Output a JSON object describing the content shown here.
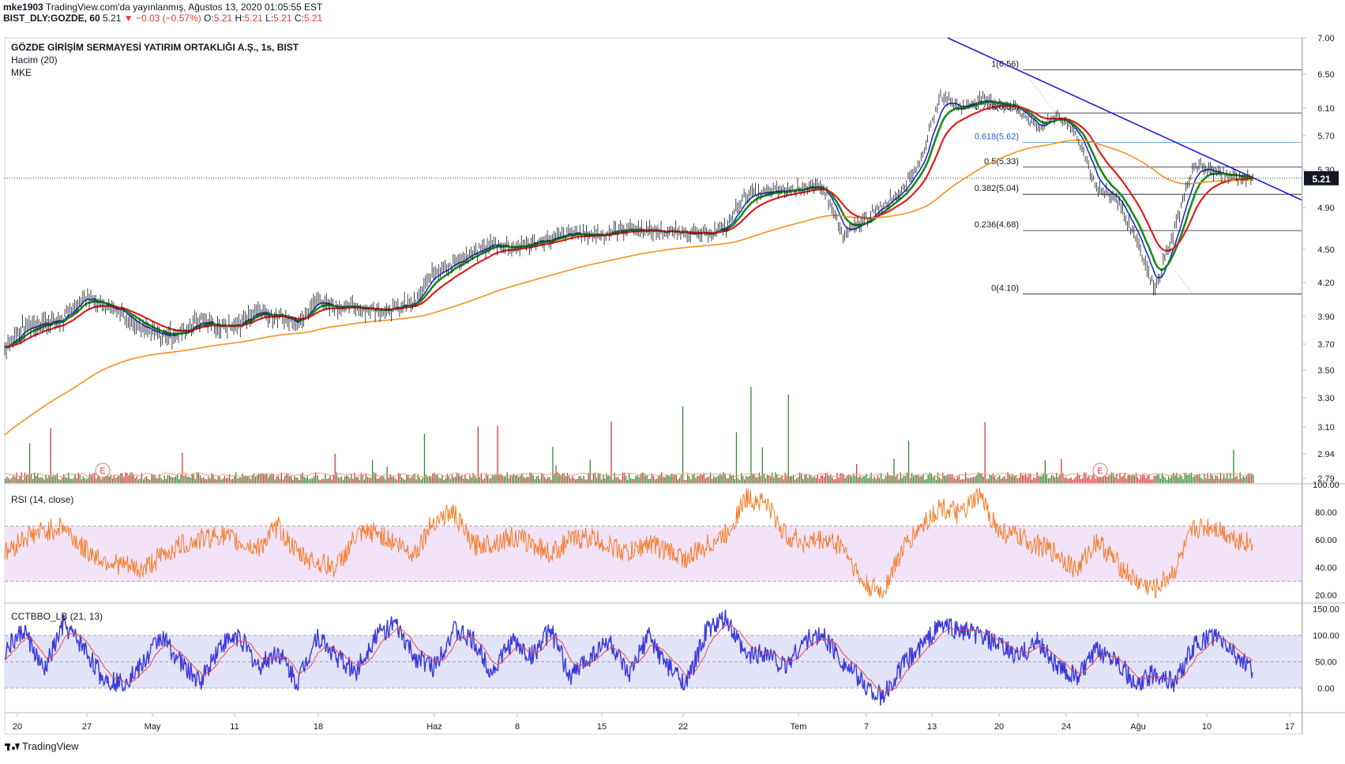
{
  "header": {
    "line1_user": "mke1903",
    "line1_rest": "TradingView.com'da yayınlanmış, Ağustos 13, 2020 01:05:55 EST",
    "line2_symbol": "BIST_DLY:GOZDE, 60",
    "line2_price": "5.21",
    "line2_arrow": "▼",
    "line2_change": "−0.03 (−0.57%)",
    "o_label": "O:",
    "o_val": "5.21",
    "h_label": "H:",
    "h_val": "5.21",
    "l_label": "L:",
    "l_val": "5.21",
    "c_label": "C:",
    "c_val": "5.21"
  },
  "panes": {
    "main_title": "GÖZDE GİRİŞİM SERMAYESİ YATIRIM ORTAKLIĞI A.Ş., 1s, BIST",
    "volume_title": "Hacim (20)",
    "mke_title": "MKE",
    "rsi_title": "RSI (14, close)",
    "cct_title": "CCTBBO_LB (21, 13)"
  },
  "footer": {
    "brand": "TradingView"
  },
  "colors": {
    "ema_fast": "#1e2ac8",
    "ema_mid": "#1a8a1a",
    "ema_slow": "#e01e1e",
    "ema_long": "#f5901e",
    "rsi_line": "#f57c2a",
    "rsi_band": "#f3e3f8",
    "cct_line": "#3a3adb",
    "cct_signal": "#e84a4a",
    "cct_band": "#e3e3f8",
    "trend": "#1e1ed6",
    "vol_up": "#2e8b2e",
    "vol_dn": "#d23b3b"
  },
  "chart_data": [
    {
      "type": "candlestick",
      "title": "GÖZDE GİRİŞİM SERMAYESİ YATIRIM ORTAKLIĞI A.Ş., 1s, BIST",
      "x_ticks": [
        "20",
        "27",
        "May",
        "11",
        "18",
        "Haz",
        "8",
        "15",
        "22",
        "Tem",
        "7",
        "13",
        "20",
        "24",
        "Ağu",
        "10",
        "17"
      ],
      "y_ticks": [
        7.0,
        6.5,
        6.1,
        5.7,
        5.3,
        4.9,
        4.5,
        4.2,
        3.9,
        3.7,
        3.5,
        3.3,
        3.1,
        2.94,
        2.79
      ],
      "y_tick_labels": [
        "7.00",
        "6.50",
        "6.10",
        "5.70",
        "5.30",
        "4.90",
        "4.50",
        "4.20",
        "3.90",
        "3.70",
        "3.50",
        "3.30",
        "3.10",
        "2.94",
        "2.79"
      ],
      "last_price": 5.21,
      "last_price_label": "5.21",
      "price_path": [
        3.68,
        3.82,
        3.86,
        3.88,
        4.08,
        4.02,
        3.94,
        3.8,
        3.76,
        3.78,
        3.88,
        3.82,
        3.84,
        3.96,
        3.9,
        3.86,
        4.05,
        3.98,
        3.98,
        3.96,
        3.98,
        4.02,
        4.3,
        4.38,
        4.46,
        4.56,
        4.52,
        4.56,
        4.6,
        4.66,
        4.64,
        4.66,
        4.7,
        4.68,
        4.66,
        4.66,
        4.64,
        4.72,
        5.04,
        5.06,
        5.08,
        5.12,
        5.1,
        4.62,
        4.76,
        4.92,
        5.1,
        5.42,
        6.26,
        6.1,
        6.2,
        6.16,
        6.08,
        5.8,
        6.0,
        5.7,
        5.1,
        5.0,
        4.6,
        4.12,
        4.7,
        5.36,
        5.28,
        5.22,
        5.21
      ],
      "ema_lines": [
        "fast",
        "mid",
        "slow",
        "long"
      ],
      "fibonacci": [
        {
          "label": "1(6.56)",
          "value": 6.56
        },
        {
          "label": "0.786(6.03)",
          "value": 6.03
        },
        {
          "label": "0.618(5.62)",
          "value": 5.62
        },
        {
          "label": "0.5(5.33)",
          "value": 5.33
        },
        {
          "label": "0.382(5.04)",
          "value": 5.04
        },
        {
          "label": "0.236(4.68)",
          "value": 4.68
        },
        {
          "label": "0(4.10)",
          "value": 4.1
        }
      ],
      "trendline": {
        "from": 7.0,
        "to": 4.98
      }
    },
    {
      "type": "bar",
      "title": "Hacim (20)",
      "events": [
        "E",
        "E"
      ]
    },
    {
      "type": "line",
      "title": "RSI (14, close)",
      "y_tick_labels": [
        "100.00",
        "80.00",
        "60.00",
        "40.00",
        "20.00"
      ],
      "ylim": [
        15,
        100
      ],
      "band": [
        30,
        70
      ],
      "path": [
        50,
        62,
        66,
        70,
        54,
        46,
        42,
        38,
        48,
        56,
        60,
        64,
        58,
        54,
        70,
        50,
        44,
        40,
        62,
        66,
        58,
        50,
        74,
        80,
        56,
        58,
        62,
        58,
        50,
        60,
        62,
        56,
        50,
        58,
        52,
        46,
        56,
        64,
        90,
        88,
        64,
        58,
        60,
        56,
        28,
        22,
        52,
        70,
        84,
        78,
        92,
        66,
        62,
        56,
        50,
        38,
        60,
        44,
        30,
        24,
        38,
        68,
        70,
        62,
        57
      ]
    },
    {
      "type": "line",
      "title": "CCTBBO_LB (21, 13)",
      "y_tick_labels": [
        "150.00",
        "100.00",
        "50.00",
        "0.00"
      ],
      "ylim": [
        -45,
        160
      ],
      "band": [
        0,
        100
      ],
      "path": [
        70,
        110,
        30,
        120,
        80,
        20,
        10,
        40,
        100,
        50,
        10,
        80,
        100,
        40,
        70,
        10,
        100,
        60,
        30,
        100,
        120,
        60,
        40,
        110,
        90,
        30,
        90,
        60,
        110,
        20,
        60,
        90,
        20,
        100,
        40,
        10,
        110,
        130,
        60,
        70,
        40,
        90,
        100,
        50,
        10,
        -20,
        40,
        80,
        120,
        110,
        100,
        80,
        60,
        90,
        40,
        20,
        70,
        60,
        0,
        30,
        10,
        80,
        100,
        70,
        30
      ]
    }
  ]
}
